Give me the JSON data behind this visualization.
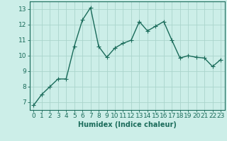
{
  "x": [
    0,
    1,
    2,
    3,
    4,
    5,
    6,
    7,
    8,
    9,
    10,
    11,
    12,
    13,
    14,
    15,
    16,
    17,
    18,
    19,
    20,
    21,
    22,
    23
  ],
  "y": [
    6.8,
    7.5,
    8.0,
    8.5,
    8.5,
    10.6,
    12.3,
    13.1,
    10.6,
    9.9,
    10.5,
    10.8,
    11.0,
    12.2,
    11.6,
    11.9,
    12.2,
    11.0,
    9.85,
    10.0,
    9.9,
    9.85,
    9.3,
    9.75
  ],
  "line_color": "#1a6b5a",
  "marker": "+",
  "marker_size": 4,
  "xlabel": "Humidex (Indice chaleur)",
  "ylim": [
    6.5,
    13.5
  ],
  "xlim": [
    -0.5,
    23.5
  ],
  "yticks": [
    7,
    8,
    9,
    10,
    11,
    12,
    13
  ],
  "xticks": [
    0,
    1,
    2,
    3,
    4,
    5,
    6,
    7,
    8,
    9,
    10,
    11,
    12,
    13,
    14,
    15,
    16,
    17,
    18,
    19,
    20,
    21,
    22,
    23
  ],
  "background_color": "#cceee8",
  "grid_color": "#aad4cc",
  "line_border_color": "#1a6b5a",
  "label_color": "#1a6b5a",
  "xlabel_fontsize": 7,
  "tick_fontsize": 6.5,
  "linewidth": 1.0
}
